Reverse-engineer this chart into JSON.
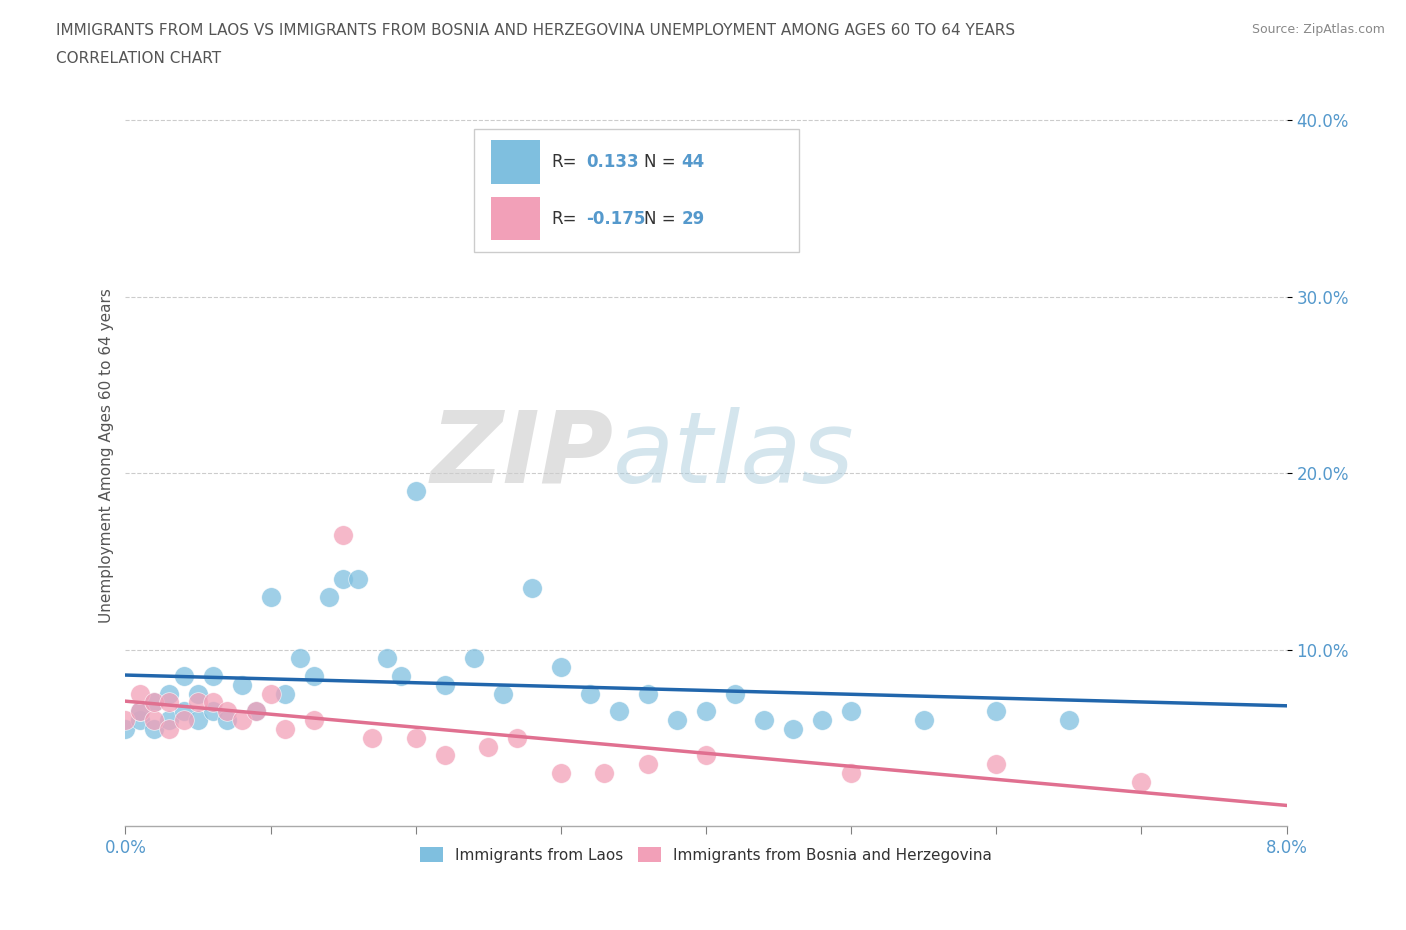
{
  "title_line1": "IMMIGRANTS FROM LAOS VS IMMIGRANTS FROM BOSNIA AND HERZEGOVINA UNEMPLOYMENT AMONG AGES 60 TO 64 YEARS",
  "title_line2": "CORRELATION CHART",
  "source": "Source: ZipAtlas.com",
  "ylabel": "Unemployment Among Ages 60 to 64 years",
  "xlim": [
    0.0,
    0.08
  ],
  "ylim": [
    0.0,
    0.42
  ],
  "yticks": [
    0.1,
    0.2,
    0.3,
    0.4
  ],
  "ytick_labels": [
    "10.0%",
    "20.0%",
    "30.0%",
    "40.0%"
  ],
  "xtick_positions": [
    0.0,
    0.01,
    0.02,
    0.03,
    0.04,
    0.05,
    0.06,
    0.07,
    0.08
  ],
  "xtick_labels": [
    "0.0%",
    "",
    "",
    "",
    "",
    "",
    "",
    "",
    "8.0%"
  ],
  "watermark_zip": "ZIP",
  "watermark_atlas": "atlas",
  "blue_color": "#a8cce4",
  "pink_color": "#f4b8c8",
  "blue_line_color": "#2166ac",
  "pink_line_color": "#e07090",
  "blue_scatter_color": "#7fbfdf",
  "pink_scatter_color": "#f2a0b8",
  "title_color": "#555555",
  "tick_color": "#5599cc",
  "laos_x": [
    0.0,
    0.001,
    0.001,
    0.002,
    0.002,
    0.003,
    0.003,
    0.004,
    0.004,
    0.005,
    0.005,
    0.006,
    0.006,
    0.007,
    0.008,
    0.009,
    0.01,
    0.011,
    0.012,
    0.013,
    0.014,
    0.015,
    0.016,
    0.018,
    0.019,
    0.02,
    0.022,
    0.024,
    0.026,
    0.028,
    0.03,
    0.032,
    0.034,
    0.036,
    0.038,
    0.04,
    0.042,
    0.044,
    0.046,
    0.048,
    0.05,
    0.055,
    0.06,
    0.065
  ],
  "laos_y": [
    0.055,
    0.06,
    0.065,
    0.055,
    0.07,
    0.06,
    0.075,
    0.065,
    0.085,
    0.06,
    0.075,
    0.065,
    0.085,
    0.06,
    0.08,
    0.065,
    0.13,
    0.075,
    0.095,
    0.085,
    0.13,
    0.14,
    0.14,
    0.095,
    0.085,
    0.19,
    0.08,
    0.095,
    0.075,
    0.135,
    0.09,
    0.075,
    0.065,
    0.075,
    0.06,
    0.065,
    0.075,
    0.06,
    0.055,
    0.06,
    0.065,
    0.06,
    0.065,
    0.06
  ],
  "bosnia_x": [
    0.0,
    0.001,
    0.001,
    0.002,
    0.002,
    0.003,
    0.003,
    0.004,
    0.005,
    0.006,
    0.007,
    0.008,
    0.009,
    0.01,
    0.011,
    0.013,
    0.015,
    0.017,
    0.02,
    0.022,
    0.025,
    0.027,
    0.03,
    0.033,
    0.036,
    0.04,
    0.05,
    0.06,
    0.07
  ],
  "bosnia_y": [
    0.06,
    0.065,
    0.075,
    0.06,
    0.07,
    0.055,
    0.07,
    0.06,
    0.07,
    0.07,
    0.065,
    0.06,
    0.065,
    0.075,
    0.055,
    0.06,
    0.165,
    0.05,
    0.05,
    0.04,
    0.045,
    0.05,
    0.03,
    0.03,
    0.035,
    0.04,
    0.03,
    0.035,
    0.025
  ]
}
